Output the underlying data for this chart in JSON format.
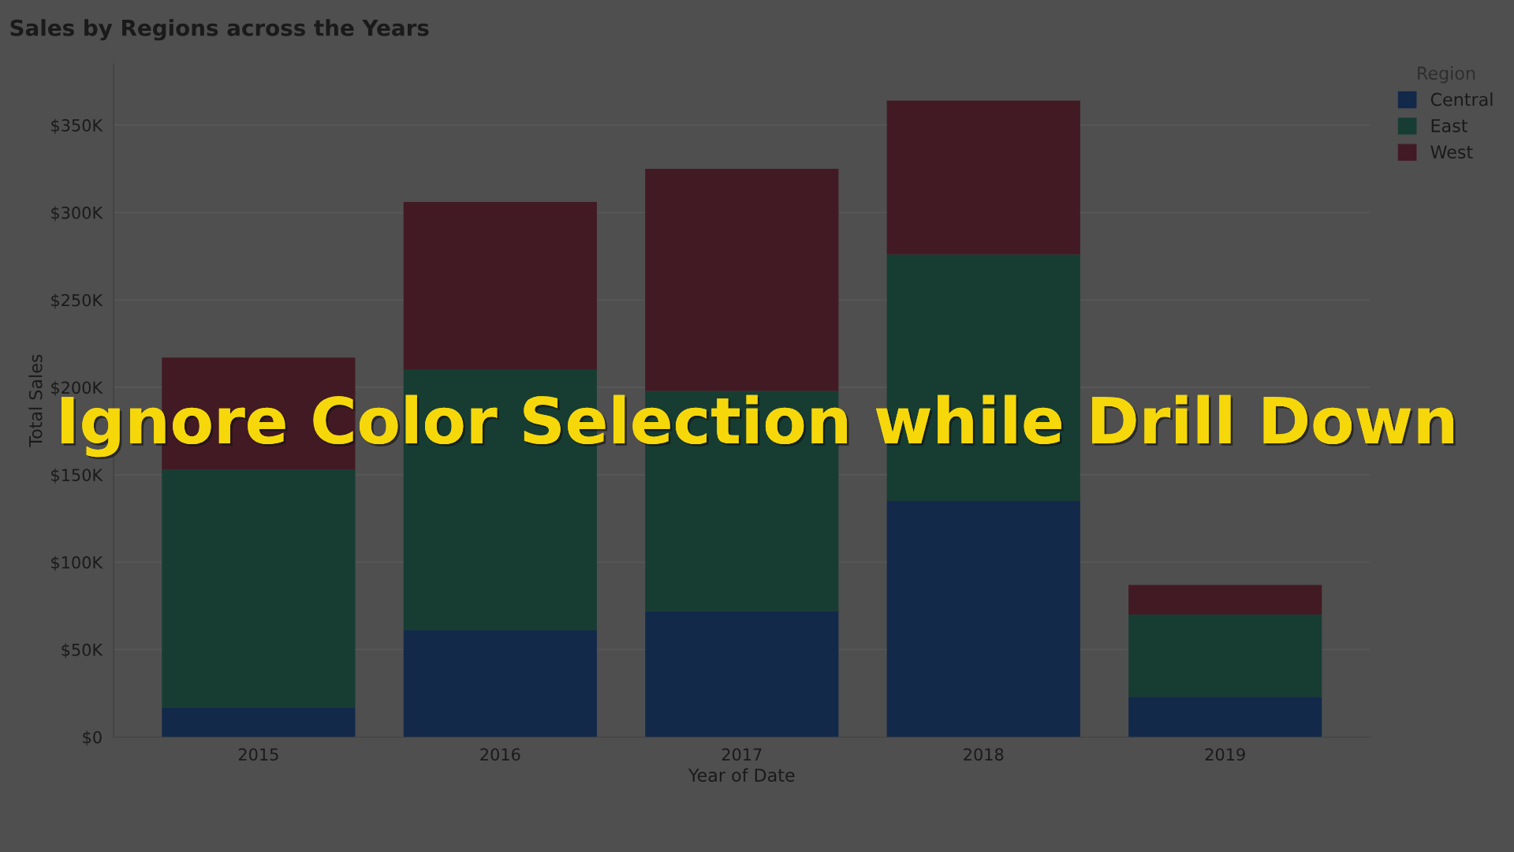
{
  "chart_data": {
    "type": "bar",
    "title": "Sales by Regions across the Years",
    "xlabel": "Year of Date",
    "ylabel": "Total Sales",
    "legend_title": "Region",
    "categories": [
      "2015",
      "2016",
      "2017",
      "2018",
      "2019"
    ],
    "series": [
      {
        "name": "Central",
        "color": "#13294a",
        "values": [
          17,
          61,
          72,
          135,
          23
        ]
      },
      {
        "name": "East",
        "color": "#173d33",
        "values": [
          136,
          149,
          126,
          141,
          47
        ]
      },
      {
        "name": "West",
        "color": "#421a24",
        "values": [
          64,
          96,
          127,
          88,
          17
        ]
      }
    ],
    "stacked": true,
    "ylim": [
      0,
      385
    ],
    "yticks": [
      {
        "value": 0,
        "label": "$0"
      },
      {
        "value": 50,
        "label": "$50K"
      },
      {
        "value": 100,
        "label": "$100K"
      },
      {
        "value": 150,
        "label": "$150K"
      },
      {
        "value": 200,
        "label": "$200K"
      },
      {
        "value": 250,
        "label": "$250K"
      },
      {
        "value": 300,
        "label": "$300K"
      },
      {
        "value": 350,
        "label": "$350K"
      }
    ],
    "grid": "y",
    "legend": "top right",
    "annotations": [
      "Ignore Color Selection while Drill Down"
    ]
  }
}
